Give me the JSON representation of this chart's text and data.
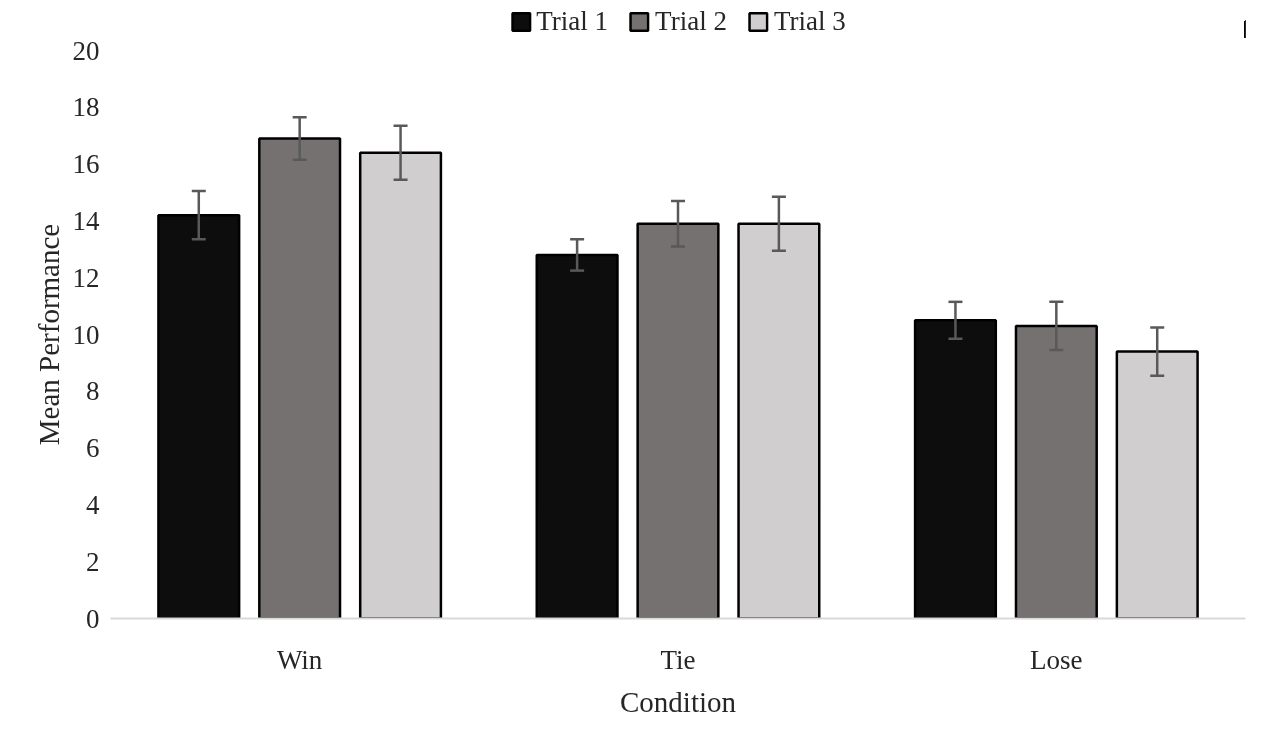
{
  "chart_data": {
    "type": "bar",
    "xlabel": "Condition",
    "ylabel": "Mean Performance",
    "categories": [
      "Win",
      "Tie",
      "Lose"
    ],
    "series": [
      {
        "name": "Trial 1",
        "color": "#0d0d0d",
        "values": [
          14.2,
          12.8,
          10.5
        ],
        "errors": [
          0.85,
          0.55,
          0.65
        ]
      },
      {
        "name": "Trial 2",
        "color": "#767171",
        "values": [
          16.9,
          13.9,
          10.3
        ],
        "errors": [
          0.75,
          0.8,
          0.85
        ]
      },
      {
        "name": "Trial 3",
        "color": "#d0cece",
        "values": [
          16.4,
          13.9,
          9.4
        ],
        "errors": [
          0.95,
          0.95,
          0.85
        ]
      }
    ],
    "ylim": [
      0,
      20
    ],
    "yticks": [
      0,
      2,
      4,
      6,
      8,
      10,
      12,
      14,
      16,
      18,
      20
    ],
    "grid": false,
    "legend": "top"
  }
}
